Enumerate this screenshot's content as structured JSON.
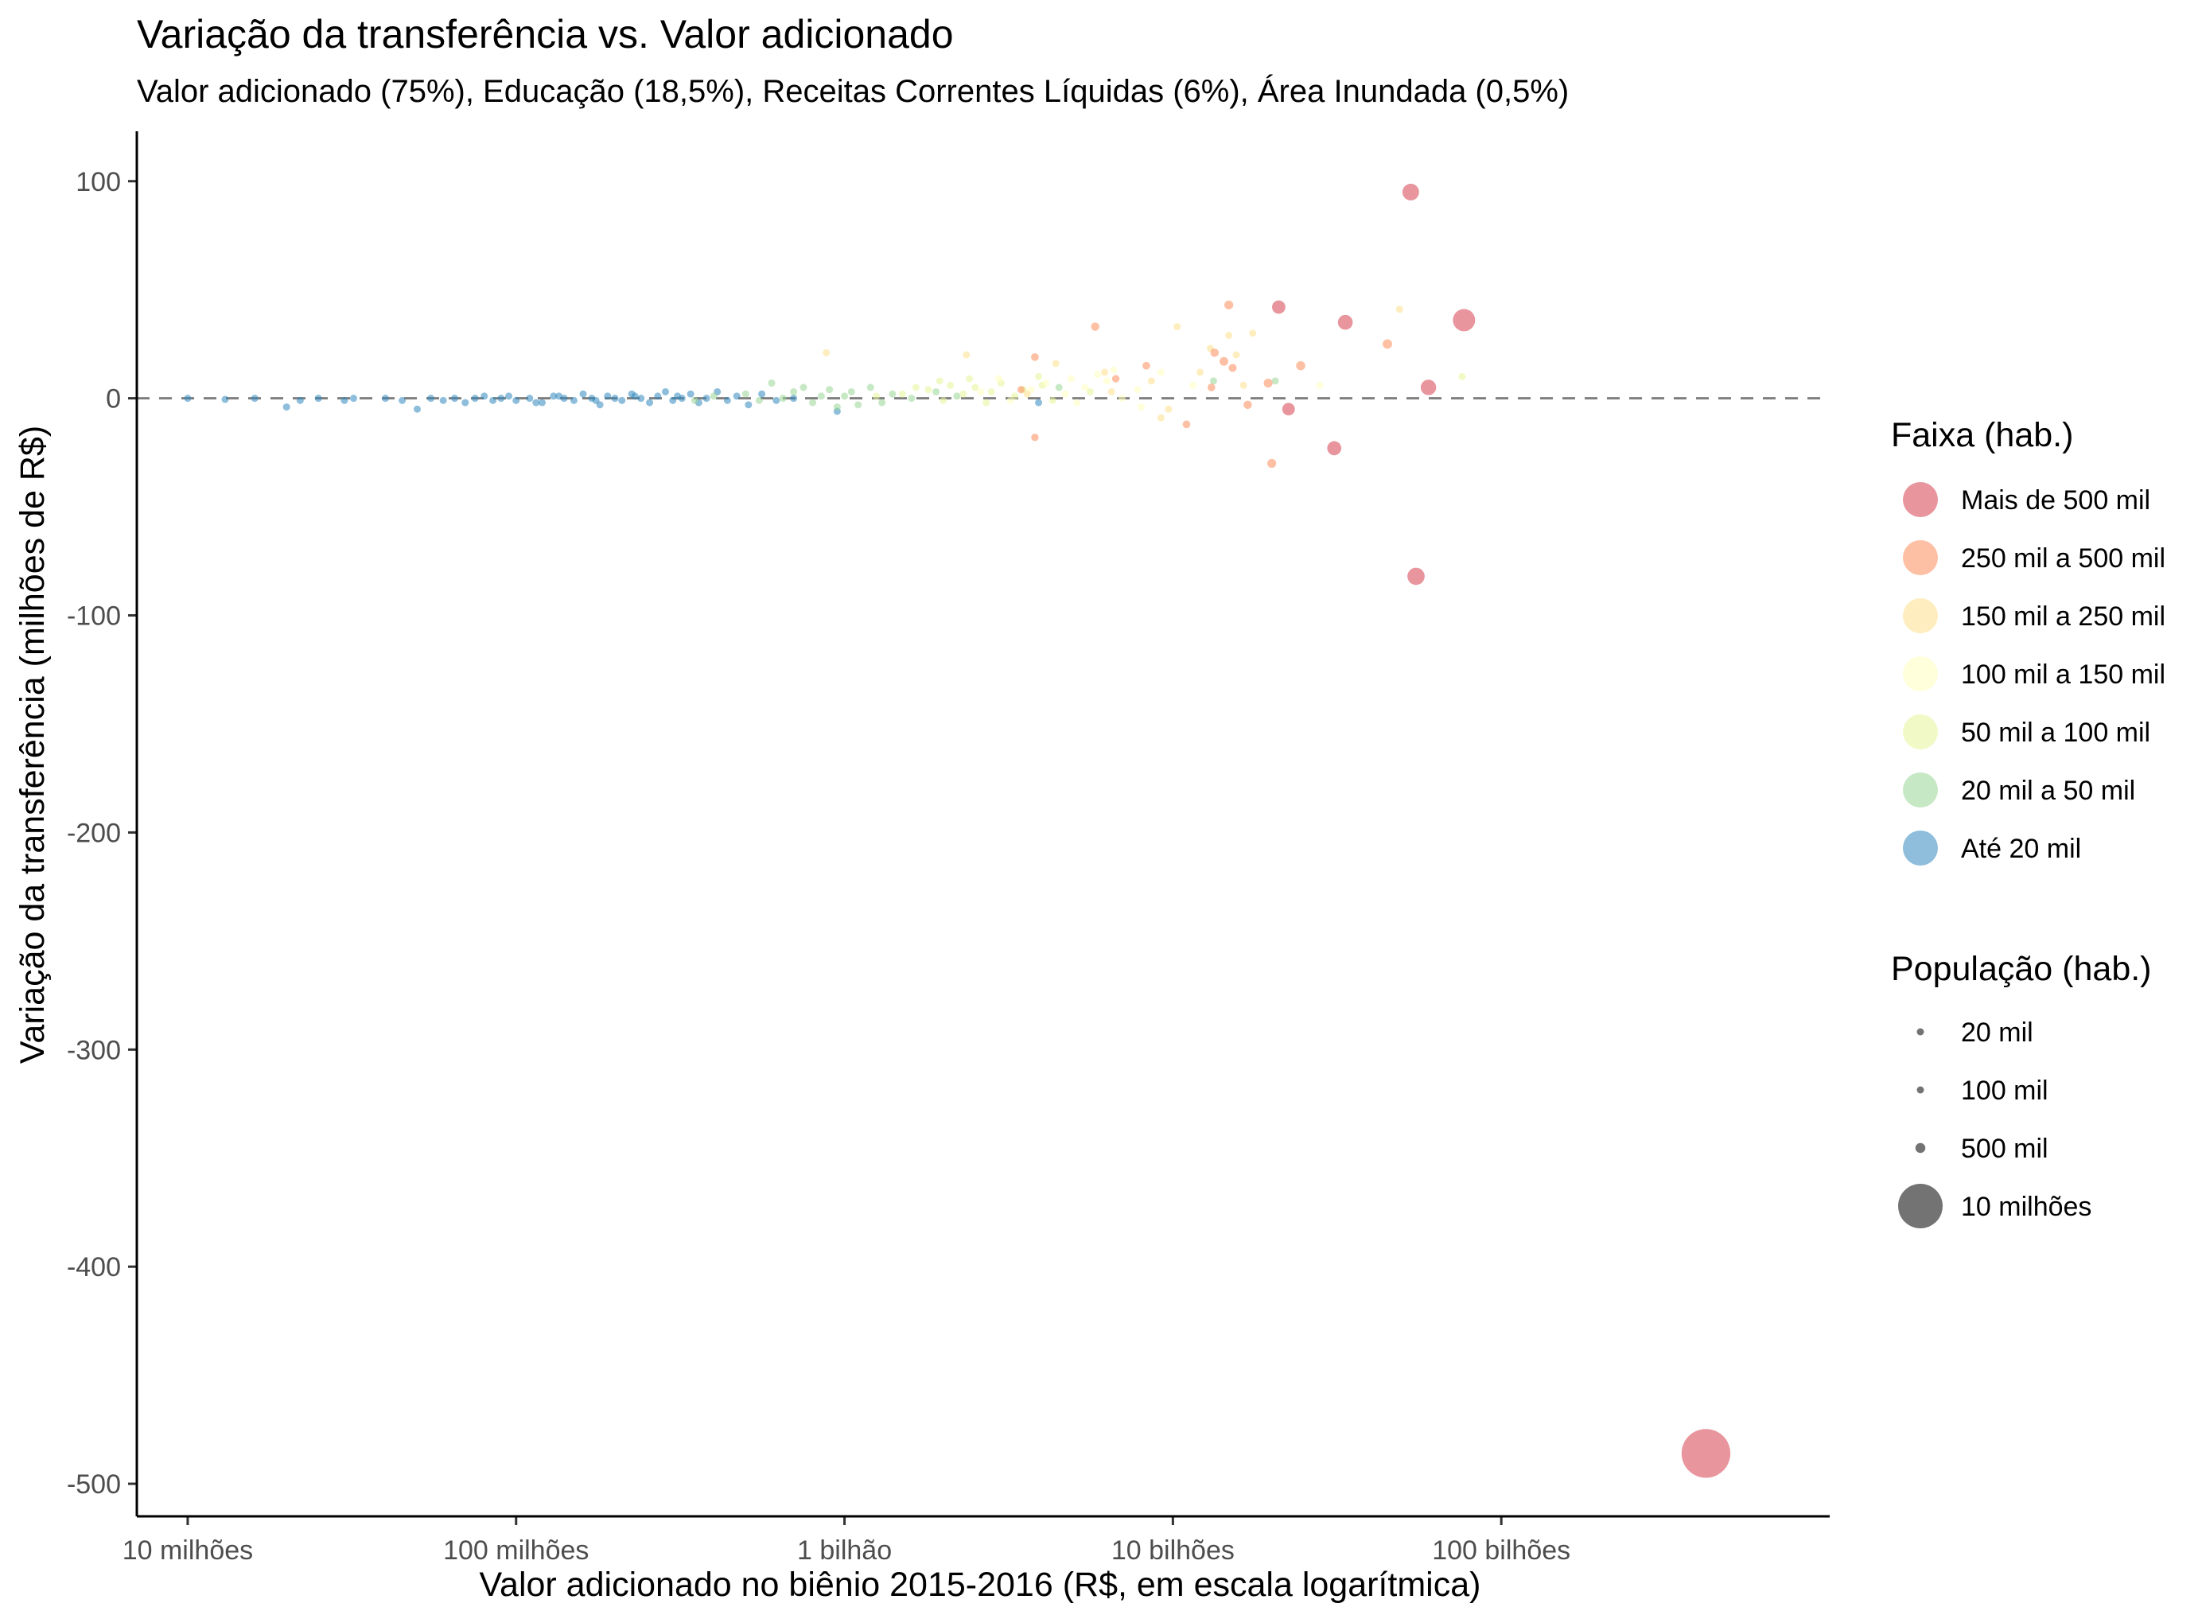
{
  "chart_data": {
    "type": "scatter",
    "title": "Variação da transferência vs. Valor adicionado",
    "subtitle": "Valor adicionado (75%), Educação (18,5%), Receitas Correntes Líquidas (6%), Área Inundada (0,5%)",
    "xlabel": "Valor adicionado no biênio 2015-2016 (R$, em escala logarítmica)",
    "ylabel": "Variação da transferência (milhões de R$)",
    "x_scale": "log10",
    "xlim": [
      7000000,
      1000000000000
    ],
    "ylim": [
      -515,
      123
    ],
    "x_ticks": [
      {
        "value": 10000000,
        "label": "10 milhões"
      },
      {
        "value": 100000000,
        "label": "100 milhões"
      },
      {
        "value": 1000000000,
        "label": "1 bilhão"
      },
      {
        "value": 10000000000,
        "label": "10 bilhões"
      },
      {
        "value": 100000000000,
        "label": "100 bilhões"
      }
    ],
    "y_ticks": [
      {
        "value": 100,
        "label": "100"
      },
      {
        "value": 0,
        "label": "0"
      },
      {
        "value": -100,
        "label": "-100"
      },
      {
        "value": -200,
        "label": "-200"
      },
      {
        "value": -300,
        "label": "-300"
      },
      {
        "value": -400,
        "label": "-400"
      },
      {
        "value": -500,
        "label": "-500"
      }
    ],
    "reference_line": {
      "y": 0,
      "style": "dashed",
      "color": "#7f7f7f"
    },
    "grid": false,
    "point_alpha": 0.55,
    "legend_color": {
      "title": "Faixa (hab.)",
      "placement": "right",
      "items": [
        {
          "label": "Mais de 500 mil",
          "color": "#d53e4f"
        },
        {
          "label": "250 mil a 500 mil",
          "color": "#fc8d59"
        },
        {
          "label": "150 mil a 250 mil",
          "color": "#fee08b"
        },
        {
          "label": "100 mil a 150 mil",
          "color": "#ffffbf"
        },
        {
          "label": "50 mil a 100 mil",
          "color": "#e6f598"
        },
        {
          "label": "20 mil a 50 mil",
          "color": "#99d594"
        },
        {
          "label": "Até 20 mil",
          "color": "#3288bd"
        }
      ]
    },
    "legend_size": {
      "title": "População (hab.)",
      "placement": "right",
      "items": [
        {
          "label": "20 mil",
          "population": 20000
        },
        {
          "label": "100 mil",
          "population": 100000
        },
        {
          "label": "500 mil",
          "population": 500000
        },
        {
          "label": "10 milhões",
          "population": 10000000
        }
      ]
    },
    "series": [
      {
        "category": "Mais de 500 mil",
        "points": [
          {
            "x": 53000000000,
            "y": 95,
            "pop": 1400000
          },
          {
            "x": 21000000000,
            "y": 42,
            "pop": 900000
          },
          {
            "x": 77000000000,
            "y": 36,
            "pop": 2500000
          },
          {
            "x": 33500000000,
            "y": 35,
            "pop": 1100000
          },
          {
            "x": 60000000000,
            "y": 5,
            "pop": 1200000
          },
          {
            "x": 22500000000,
            "y": -5,
            "pop": 800000
          },
          {
            "x": 31000000000,
            "y": -23,
            "pop": 1000000
          },
          {
            "x": 55000000000,
            "y": -82,
            "pop": 1500000
          },
          {
            "x": 420000000000,
            "y": -486,
            "pop": 12000000
          }
        ]
      },
      {
        "category": "250 mil a 500 mil",
        "points": [
          {
            "x": 5800000000,
            "y": 33,
            "pop": 350000
          },
          {
            "x": 14800000000,
            "y": 43,
            "pop": 400000
          },
          {
            "x": 45000000000,
            "y": 25,
            "pop": 450000
          },
          {
            "x": 3800000000,
            "y": 19,
            "pop": 300000
          },
          {
            "x": 13400000000,
            "y": 21,
            "pop": 350000
          },
          {
            "x": 14300000000,
            "y": 17,
            "pop": 380000
          },
          {
            "x": 24500000000,
            "y": 15,
            "pop": 420000
          },
          {
            "x": 8300000000,
            "y": 15,
            "pop": 300000
          },
          {
            "x": 15200000000,
            "y": 14,
            "pop": 330000
          },
          {
            "x": 6700000000,
            "y": 9,
            "pop": 280000
          },
          {
            "x": 19500000000,
            "y": 7,
            "pop": 400000
          },
          {
            "x": 13100000000,
            "y": 5,
            "pop": 300000
          },
          {
            "x": 3450000000,
            "y": 4,
            "pop": 270000
          },
          {
            "x": 16900000000,
            "y": -3,
            "pop": 350000
          },
          {
            "x": 11000000000,
            "y": -12,
            "pop": 300000
          },
          {
            "x": 3800000000,
            "y": -18,
            "pop": 280000
          },
          {
            "x": 20000000000,
            "y": -30,
            "pop": 400000
          }
        ]
      },
      {
        "category": "150 mil a 250 mil",
        "points": [
          {
            "x": 880000000,
            "y": 21,
            "pop": 160000
          },
          {
            "x": 49000000000,
            "y": 41,
            "pop": 230000
          },
          {
            "x": 10300000000,
            "y": 33,
            "pop": 200000
          },
          {
            "x": 17500000000,
            "y": 30,
            "pop": 210000
          },
          {
            "x": 14800000000,
            "y": 29,
            "pop": 200000
          },
          {
            "x": 13000000000,
            "y": 23,
            "pop": 180000
          },
          {
            "x": 2350000000,
            "y": 20,
            "pop": 170000
          },
          {
            "x": 15600000000,
            "y": 20,
            "pop": 190000
          },
          {
            "x": 12100000000,
            "y": 12,
            "pop": 170000
          },
          {
            "x": 4400000000,
            "y": 16,
            "pop": 160000
          },
          {
            "x": 6200000000,
            "y": 12,
            "pop": 180000
          },
          {
            "x": 8600000000,
            "y": 8,
            "pop": 200000
          },
          {
            "x": 16400000000,
            "y": 6,
            "pop": 180000
          },
          {
            "x": 9700000000,
            "y": -5,
            "pop": 170000
          },
          {
            "x": 9200000000,
            "y": -9,
            "pop": 160000
          },
          {
            "x": 3600000000,
            "y": 2,
            "pop": 160000
          },
          {
            "x": 6500000000,
            "y": 3,
            "pop": 170000
          }
        ]
      },
      {
        "category": "100 mil a 150 mil",
        "points": [
          {
            "x": 2950000000,
            "y": 9,
            "pop": 120000
          },
          {
            "x": 3700000000,
            "y": 4,
            "pop": 130000
          },
          {
            "x": 4700000000,
            "y": 2,
            "pop": 110000
          },
          {
            "x": 5400000000,
            "y": 5,
            "pop": 125000
          },
          {
            "x": 5900000000,
            "y": 11,
            "pop": 140000
          },
          {
            "x": 6300000000,
            "y": 8,
            "pop": 110000
          },
          {
            "x": 7000000000,
            "y": 0,
            "pop": 120000
          },
          {
            "x": 7800000000,
            "y": 4,
            "pop": 130000
          },
          {
            "x": 9200000000,
            "y": 12,
            "pop": 140000
          },
          {
            "x": 11500000000,
            "y": 6,
            "pop": 120000
          },
          {
            "x": 3200000000,
            "y": -1,
            "pop": 105000
          },
          {
            "x": 4100000000,
            "y": 7,
            "pop": 115000
          },
          {
            "x": 5100000000,
            "y": -2,
            "pop": 110000
          },
          {
            "x": 6600000000,
            "y": 13,
            "pop": 135000
          },
          {
            "x": 28000000000,
            "y": 6,
            "pop": 145000
          },
          {
            "x": 2600000000,
            "y": 3,
            "pop": 110000
          },
          {
            "x": 8000000000,
            "y": -4,
            "pop": 120000
          },
          {
            "x": 4900000000,
            "y": 9,
            "pop": 125000
          }
        ]
      },
      {
        "category": "50 mil a 100 mil",
        "points": [
          {
            "x": 1800000000,
            "y": 4,
            "pop": 60000
          },
          {
            "x": 2100000000,
            "y": 6,
            "pop": 70000
          },
          {
            "x": 2300000000,
            "y": 2,
            "pop": 65000
          },
          {
            "x": 2500000000,
            "y": 5,
            "pop": 80000
          },
          {
            "x": 2800000000,
            "y": 3,
            "pop": 75000
          },
          {
            "x": 3000000000,
            "y": 7,
            "pop": 90000
          },
          {
            "x": 3300000000,
            "y": 1,
            "pop": 85000
          },
          {
            "x": 3500000000,
            "y": 4,
            "pop": 70000
          },
          {
            "x": 2000000000,
            "y": -1,
            "pop": 60000
          },
          {
            "x": 1500000000,
            "y": 2,
            "pop": 55000
          },
          {
            "x": 1650000000,
            "y": 5,
            "pop": 60000
          },
          {
            "x": 4000000000,
            "y": 6,
            "pop": 90000
          },
          {
            "x": 4300000000,
            "y": -1,
            "pop": 80000
          },
          {
            "x": 5600000000,
            "y": 3,
            "pop": 95000
          },
          {
            "x": 76000000000,
            "y": 10,
            "pop": 100000
          },
          {
            "x": 1250000000,
            "y": 1,
            "pop": 55000
          },
          {
            "x": 2700000000,
            "y": -2,
            "pop": 65000
          },
          {
            "x": 3900000000,
            "y": 10,
            "pop": 85000
          },
          {
            "x": 1950000000,
            "y": 8,
            "pop": 70000
          },
          {
            "x": 2400000000,
            "y": 9,
            "pop": 75000
          }
        ]
      },
      {
        "category": "20 mil a 50 mil",
        "points": [
          {
            "x": 600000000,
            "y": 7,
            "pop": 30000
          },
          {
            "x": 700000000,
            "y": 3,
            "pop": 35000
          },
          {
            "x": 800000000,
            "y": -2,
            "pop": 30000
          },
          {
            "x": 900000000,
            "y": 4,
            "pop": 40000
          },
          {
            "x": 1000000000,
            "y": 1,
            "pop": 45000
          },
          {
            "x": 1100000000,
            "y": -3,
            "pop": 40000
          },
          {
            "x": 1200000000,
            "y": 5,
            "pop": 35000
          },
          {
            "x": 1400000000,
            "y": 2,
            "pop": 45000
          },
          {
            "x": 1600000000,
            "y": 0,
            "pop": 48000
          },
          {
            "x": 1900000000,
            "y": 3,
            "pop": 40000
          },
          {
            "x": 2200000000,
            "y": 1,
            "pop": 45000
          },
          {
            "x": 500000000,
            "y": 2,
            "pop": 25000
          },
          {
            "x": 550000000,
            "y": -1,
            "pop": 28000
          },
          {
            "x": 650000000,
            "y": 0,
            "pop": 30000
          },
          {
            "x": 750000000,
            "y": 5,
            "pop": 33000
          },
          {
            "x": 850000000,
            "y": 1,
            "pop": 35000
          },
          {
            "x": 950000000,
            "y": -4,
            "pop": 38000
          },
          {
            "x": 1050000000,
            "y": 3,
            "pop": 40000
          },
          {
            "x": 1300000000,
            "y": -2,
            "pop": 42000
          },
          {
            "x": 4500000000,
            "y": 5,
            "pop": 48000
          },
          {
            "x": 20500000000,
            "y": 8,
            "pop": 45000
          },
          {
            "x": 13300000000,
            "y": 8,
            "pop": 42000
          },
          {
            "x": 400000000,
            "y": 1,
            "pop": 22000
          },
          {
            "x": 350000000,
            "y": -1,
            "pop": 21000
          }
        ]
      },
      {
        "category": "Até 20 mil",
        "points": [
          {
            "x": 10000000,
            "y": 0,
            "pop": 2000
          },
          {
            "x": 13000000,
            "y": -0.5,
            "pop": 3000
          },
          {
            "x": 16000000,
            "y": 0,
            "pop": 3000
          },
          {
            "x": 20000000,
            "y": -4,
            "pop": 5000
          },
          {
            "x": 22000000,
            "y": -1,
            "pop": 4000
          },
          {
            "x": 25000000,
            "y": 0,
            "pop": 5000
          },
          {
            "x": 30000000,
            "y": -1,
            "pop": 6000
          },
          {
            "x": 32000000,
            "y": 0,
            "pop": 5000
          },
          {
            "x": 40000000,
            "y": 0,
            "pop": 6000
          },
          {
            "x": 45000000,
            "y": -1,
            "pop": 7000
          },
          {
            "x": 50000000,
            "y": -5,
            "pop": 8000
          },
          {
            "x": 55000000,
            "y": 0,
            "pop": 7000
          },
          {
            "x": 60000000,
            "y": -1,
            "pop": 8000
          },
          {
            "x": 65000000,
            "y": 0,
            "pop": 8000
          },
          {
            "x": 70000000,
            "y": -2,
            "pop": 9000
          },
          {
            "x": 75000000,
            "y": 0,
            "pop": 8000
          },
          {
            "x": 80000000,
            "y": 1,
            "pop": 9000
          },
          {
            "x": 85000000,
            "y": -1,
            "pop": 10000
          },
          {
            "x": 90000000,
            "y": 0,
            "pop": 9000
          },
          {
            "x": 95000000,
            "y": 1,
            "pop": 10000
          },
          {
            "x": 100000000,
            "y": -1,
            "pop": 10000
          },
          {
            "x": 110000000,
            "y": 0,
            "pop": 11000
          },
          {
            "x": 120000000,
            "y": -2,
            "pop": 11000
          },
          {
            "x": 130000000,
            "y": 1,
            "pop": 12000
          },
          {
            "x": 140000000,
            "y": 0,
            "pop": 12000
          },
          {
            "x": 150000000,
            "y": -1,
            "pop": 13000
          },
          {
            "x": 160000000,
            "y": 2,
            "pop": 13000
          },
          {
            "x": 170000000,
            "y": 0,
            "pop": 14000
          },
          {
            "x": 180000000,
            "y": -3,
            "pop": 14000
          },
          {
            "x": 190000000,
            "y": 1,
            "pop": 15000
          },
          {
            "x": 200000000,
            "y": 0,
            "pop": 15000
          },
          {
            "x": 210000000,
            "y": -1,
            "pop": 15000
          },
          {
            "x": 225000000,
            "y": 2,
            "pop": 16000
          },
          {
            "x": 240000000,
            "y": 0,
            "pop": 16000
          },
          {
            "x": 255000000,
            "y": -2,
            "pop": 16000
          },
          {
            "x": 270000000,
            "y": 1,
            "pop": 17000
          },
          {
            "x": 285000000,
            "y": 3,
            "pop": 17000
          },
          {
            "x": 300000000,
            "y": -1,
            "pop": 17000
          },
          {
            "x": 320000000,
            "y": 0,
            "pop": 18000
          },
          {
            "x": 340000000,
            "y": 2,
            "pop": 18000
          },
          {
            "x": 360000000,
            "y": -2,
            "pop": 18000
          },
          {
            "x": 380000000,
            "y": 0,
            "pop": 19000
          },
          {
            "x": 410000000,
            "y": 3,
            "pop": 19000
          },
          {
            "x": 440000000,
            "y": -1,
            "pop": 19000
          },
          {
            "x": 470000000,
            "y": 1,
            "pop": 19500
          },
          {
            "x": 510000000,
            "y": -3,
            "pop": 19500
          },
          {
            "x": 560000000,
            "y": 2,
            "pop": 19500
          },
          {
            "x": 620000000,
            "y": -1,
            "pop": 19800
          },
          {
            "x": 700000000,
            "y": 0,
            "pop": 19800
          },
          {
            "x": 950000000,
            "y": -6,
            "pop": 19900
          },
          {
            "x": 3900000000,
            "y": -2,
            "pop": 19900
          },
          {
            "x": 115000000,
            "y": -2,
            "pop": 9000
          },
          {
            "x": 135000000,
            "y": 1,
            "pop": 8000
          },
          {
            "x": 175000000,
            "y": -1,
            "pop": 9000
          },
          {
            "x": 230000000,
            "y": 1,
            "pop": 10000
          },
          {
            "x": 310000000,
            "y": 1,
            "pop": 11000
          }
        ]
      }
    ]
  }
}
